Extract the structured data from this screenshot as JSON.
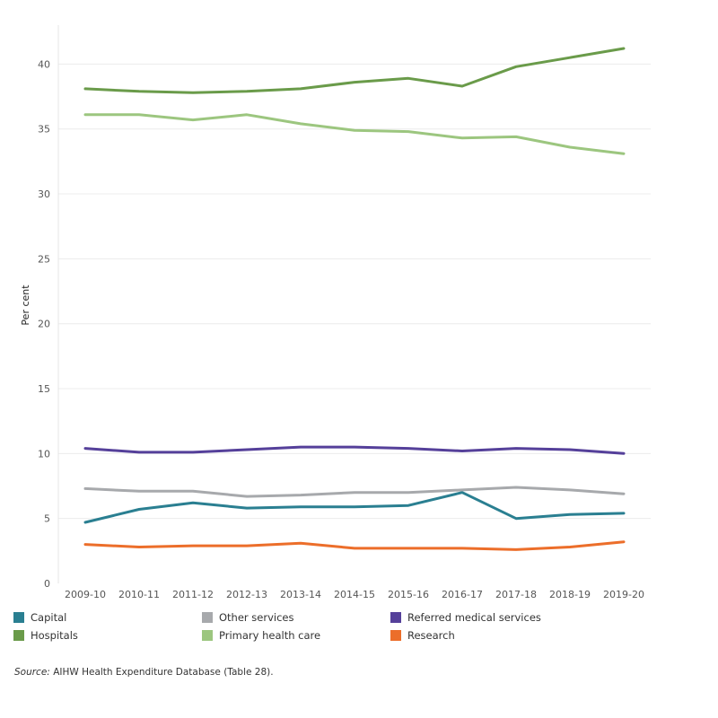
{
  "chart_data": {
    "type": "line",
    "ylabel": "Per cent",
    "xlabel": "",
    "ylim": [
      0,
      43
    ],
    "yticks": [
      0,
      5,
      10,
      15,
      20,
      25,
      30,
      35,
      40
    ],
    "grid": true,
    "legend_position": "bottom",
    "categories": [
      "2009-10",
      "2010-11",
      "2011-12",
      "2012-13",
      "2013-14",
      "2014-15",
      "2015-16",
      "2016-17",
      "2017-18",
      "2018-19",
      "2019-20"
    ],
    "series": [
      {
        "name": "Capital",
        "color": "#2a7f91",
        "values": [
          4.7,
          5.7,
          6.2,
          5.8,
          5.9,
          5.9,
          6.0,
          7.0,
          5.0,
          5.3,
          5.4
        ]
      },
      {
        "name": "Hospitals",
        "color": "#6a9b4a",
        "values": [
          38.1,
          37.9,
          37.8,
          37.9,
          38.1,
          38.6,
          38.9,
          38.3,
          39.8,
          40.5,
          41.2
        ]
      },
      {
        "name": "Other services",
        "color": "#a7a9ac",
        "values": [
          7.3,
          7.1,
          7.1,
          6.7,
          6.8,
          7.0,
          7.0,
          7.2,
          7.4,
          7.2,
          6.9
        ]
      },
      {
        "name": "Primary health care",
        "color": "#9cc67f",
        "values": [
          36.1,
          36.1,
          35.7,
          36.1,
          35.4,
          34.9,
          34.8,
          34.3,
          34.4,
          33.6,
          33.1
        ]
      },
      {
        "name": "Referred medical services",
        "color": "#55409a",
        "values": [
          10.4,
          10.1,
          10.1,
          10.3,
          10.5,
          10.5,
          10.4,
          10.2,
          10.4,
          10.3,
          10.0
        ]
      },
      {
        "name": "Research",
        "color": "#ec6e2a",
        "values": [
          3.0,
          2.8,
          2.9,
          2.9,
          3.1,
          2.7,
          2.7,
          2.7,
          2.6,
          2.8,
          3.2
        ]
      }
    ]
  },
  "source": {
    "label": "Source:",
    "text": "AIHW Health Expenditure Database (Table 28)."
  }
}
